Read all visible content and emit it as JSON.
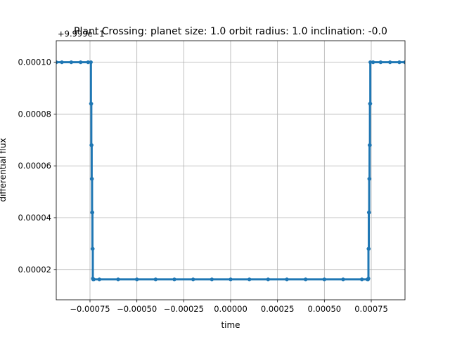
{
  "chart_data": {
    "type": "line",
    "title": "Plant Crossing: planet size: 1.0 orbit radius: 1.0 inclination: -0.0",
    "xlabel": "time",
    "ylabel": "differential flux",
    "y_offset_label": "+9.999e−1",
    "x_ticks": [
      -0.00075,
      -0.0005,
      -0.00025,
      0.0,
      0.00025,
      0.0005,
      0.00075
    ],
    "x_tick_labels": [
      "−0.00075",
      "−0.00050",
      "−0.00025",
      "0.00000",
      "0.00025",
      "0.00050",
      "0.00075"
    ],
    "y_ticks": [
      2e-05,
      4e-05,
      6e-05,
      8e-05,
      0.0001
    ],
    "y_tick_labels": [
      "0.00002",
      "0.00004",
      "0.00006",
      "0.00008",
      "0.00010"
    ],
    "xlim": [
      -0.00093,
      0.00093
    ],
    "ylim": [
      8.3e-06,
      0.0001083
    ],
    "grid": true,
    "series": [
      {
        "color": "#1f77b4",
        "marker": "circle",
        "x": [
          -0.00093,
          -0.0009,
          -0.00085,
          -0.0008,
          -0.00076,
          -0.000745,
          -0.000745,
          -0.000743,
          -0.000743,
          -0.000741,
          -0.000741,
          -0.000739,
          -0.000739,
          -0.000737,
          -0.000737,
          -0.000735,
          -0.000735,
          -0.000733,
          -0.00073,
          -0.0007,
          -0.0006,
          -0.0005,
          -0.0004,
          -0.0003,
          -0.0002,
          -0.0001,
          0.0,
          0.0001,
          0.0002,
          0.0003,
          0.0004,
          0.0005,
          0.0006,
          0.0007,
          0.00073,
          0.000733,
          0.000735,
          0.000735,
          0.000737,
          0.000737,
          0.000739,
          0.000739,
          0.000741,
          0.000741,
          0.000743,
          0.000743,
          0.000745,
          0.000745,
          0.00076,
          0.0008,
          0.00085,
          0.0009,
          0.00093
        ],
        "y": [
          0.0001,
          0.0001,
          0.0001,
          0.0001,
          0.0001,
          0.0001,
          8.4e-05,
          8.4e-05,
          6.8e-05,
          6.8e-05,
          5.5e-05,
          5.5e-05,
          4.2e-05,
          4.2e-05,
          2.8e-05,
          2.8e-05,
          1.65e-05,
          1.62e-05,
          1.62e-05,
          1.62e-05,
          1.62e-05,
          1.62e-05,
          1.62e-05,
          1.62e-05,
          1.62e-05,
          1.62e-05,
          1.62e-05,
          1.62e-05,
          1.62e-05,
          1.62e-05,
          1.62e-05,
          1.62e-05,
          1.62e-05,
          1.62e-05,
          1.62e-05,
          1.62e-05,
          1.65e-05,
          2.8e-05,
          2.8e-05,
          4.2e-05,
          4.2e-05,
          5.5e-05,
          5.5e-05,
          6.8e-05,
          6.8e-05,
          8.4e-05,
          8.4e-05,
          0.0001,
          0.0001,
          0.0001,
          0.0001,
          0.0001,
          0.0001
        ]
      }
    ]
  }
}
